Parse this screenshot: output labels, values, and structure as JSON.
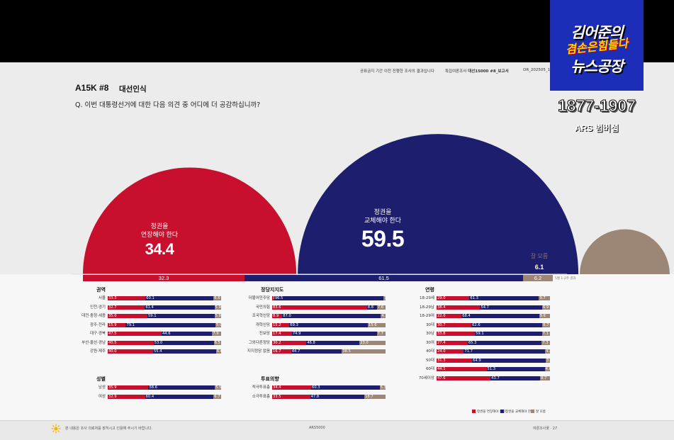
{
  "overlay": {
    "logo_line1": "김어준의",
    "logo_middle": "겸손은힘들다",
    "logo_line2": "뉴스공장",
    "years": "1877-1907",
    "subtitle": "ARS 범버섭"
  },
  "header": {
    "meta1": "공표금지 기간 이전 진행한 조사의 결과입니다",
    "meta2": "특집여론조사",
    "meta2_bold": "대선15000 #8_보고서",
    "meta3": "OR_202505_1"
  },
  "report": {
    "code": "A15K #8",
    "category": "대선인식",
    "question": "Q. 이번 대통령선거에 대한 다음 의견 중 어디에 더 공감하십니까?"
  },
  "chart_data": {
    "type": "semicircle-area",
    "series": [
      {
        "name": "정권을 연장해야 한다",
        "value": 34.4,
        "previous": 32.3,
        "color": "#c8102e"
      },
      {
        "name": "정권을 교체해야 한다",
        "value": 59.5,
        "previous": 61.5,
        "color": "#1d1f6e"
      },
      {
        "name": "잘 모름",
        "value": 6.1,
        "previous": 6.2,
        "color": "#9c8676"
      }
    ],
    "label_left_line1": "정권을",
    "label_left_line2": "연장해야 한다",
    "label_mid_line1": "정권을",
    "label_mid_line2": "교체해야 한다",
    "label_right": "잘 모름",
    "note": "5월 1-2주 결과",
    "breakdowns": [
      {
        "title": "권역",
        "rows": [
          {
            "label": "서울",
            "values": [
              33.3,
              60.1,
              6.6
            ]
          },
          {
            "label": "인천·경기",
            "values": [
              32.7,
              61.4,
              5.9
            ]
          },
          {
            "label": "대전·충청·세종",
            "values": [
              35.0,
              59.1,
              5.9
            ]
          },
          {
            "label": "광주·전라",
            "values": [
              15.9,
              79.1,
              5.0
            ]
          },
          {
            "label": "대구·경북",
            "values": [
              47.5,
              44.6,
              7.9
            ]
          },
          {
            "label": "부산·울산·경남",
            "values": [
              40.5,
              53.0,
              6.5
            ]
          },
          {
            "label": "강원·제주",
            "values": [
              40.0,
              55.4,
              4.6
            ]
          }
        ]
      },
      {
        "title": "성별",
        "rows": [
          {
            "label": "남성",
            "values": [
              35.9,
              58.6,
              5.5
            ]
          },
          {
            "label": "여성",
            "values": [
              32.9,
              60.4,
              6.7
            ]
          }
        ]
      },
      {
        "title": "정당지지도",
        "rows": [
          {
            "label": "더불어민주당",
            "values": [
              1.8,
              96.5,
              1.7
            ]
          },
          {
            "label": "국민의힘",
            "values": [
              83.6,
              8.8,
              7.6
            ]
          },
          {
            "label": "조국혁신당",
            "values": [
              8.9,
              87.0,
              4.1
            ]
          },
          {
            "label": "개혁신당",
            "values": [
              15.2,
              69.3,
              15.6
            ]
          },
          {
            "label": "진보당",
            "values": [
              17.4,
              74.9,
              7.7
            ]
          },
          {
            "label": "그외다른정당",
            "values": [
              30.2,
              46.8,
              23.0
            ]
          },
          {
            "label": "지지정당 없음",
            "values": [
              16.7,
              44.7,
              38.5
            ]
          }
        ]
      },
      {
        "title": "투표의향",
        "rows": [
          {
            "label": "적극투표층",
            "values": [
              34.4,
              60.3,
              5.3
            ]
          },
          {
            "label": "소극투표층",
            "values": [
              33.5,
              47.8,
              18.7
            ]
          }
        ]
      },
      {
        "title": "연령",
        "rows": [
          {
            "label": "18-29세",
            "values": [
              29.0,
              61.3,
              9.7
            ]
          },
          {
            "label": "18-29남",
            "values": [
              38.4,
              54.7,
              6.9
            ]
          },
          {
            "label": "18-29여",
            "values": [
              22.0,
              68.4,
              9.6
            ]
          },
          {
            "label": "30대",
            "values": [
              30.7,
              62.6,
              6.7
            ]
          },
          {
            "label": "30남",
            "values": [
              33.8,
              59.1,
              7.1
            ]
          },
          {
            "label": "30여",
            "values": [
              27.4,
              65.3,
              7.3
            ]
          },
          {
            "label": "40대",
            "values": [
              24.0,
              71.7,
              4.3
            ]
          },
          {
            "label": "50대",
            "values": [
              31.3,
              64.9,
              3.8
            ]
          },
          {
            "label": "60대",
            "values": [
              44.1,
              51.3,
              4.6
            ]
          },
          {
            "label": "70세이상",
            "values": [
              47.6,
              43.7,
              8.7
            ]
          }
        ]
      }
    ],
    "legend": [
      "정권을 연장해야 한다",
      "정권을 교체해야 한다",
      "잘 모름"
    ]
  },
  "footer": {
    "left": "본 내용은 조사 의뢰처를 밝히시고 인용해 주시기 바랍니다.",
    "center": "ARS5000",
    "right": "여론조사꽃 · 27"
  }
}
